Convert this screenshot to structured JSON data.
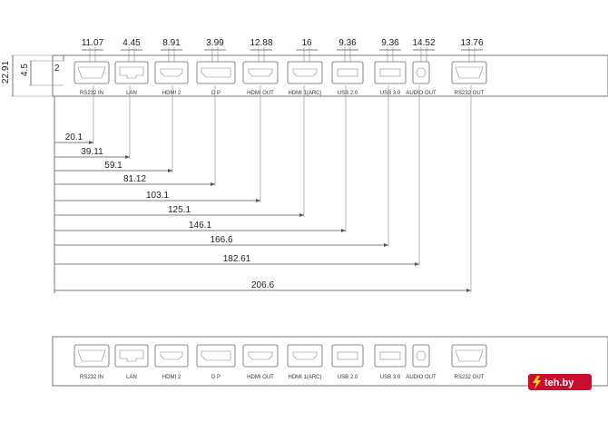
{
  "ports": [
    {
      "id": "rs232-in",
      "label": "RS232 IN",
      "width_label": "11.07",
      "offset_label": "20.1",
      "icon": "db9-port"
    },
    {
      "id": "lan",
      "label": "LAN",
      "width_label": "4.45",
      "offset_label": "39.11",
      "icon": "rj45-port"
    },
    {
      "id": "hdmi-2",
      "label": "HDMI 2",
      "width_label": "8.91",
      "offset_label": "59.1",
      "icon": "hdmi-port"
    },
    {
      "id": "dp",
      "label": "D P",
      "width_label": "3.99",
      "offset_label": "81.12",
      "icon": "displayport-port"
    },
    {
      "id": "hdmi-out",
      "label": "HDMI OUT",
      "width_label": "12.88",
      "offset_label": "103.1",
      "icon": "hdmi-port"
    },
    {
      "id": "hdmi-1-arc",
      "label": "HDMI 1(ARC)",
      "width_label": "16",
      "offset_label": "125.1",
      "icon": "hdmi-port"
    },
    {
      "id": "usb-2",
      "label": "USB 2.0",
      "width_label": "9.36",
      "offset_label": "146.1",
      "icon": "usb-port"
    },
    {
      "id": "usb-3",
      "label": "USB 3.0",
      "width_label": "9.36",
      "offset_label": "166.6",
      "icon": "usb-port"
    },
    {
      "id": "audio-out",
      "label": "AUDIO OUT",
      "width_label": "14.52",
      "offset_label": "182.61",
      "icon": "audio-jack"
    },
    {
      "id": "rs232-out",
      "label": "RS232 OUT",
      "width_label": "13.76",
      "offset_label": "206.6",
      "icon": "db9-port"
    }
  ],
  "side_dims": {
    "panel_height": "22.91",
    "port_height": "4.5",
    "port_top_gap": "2"
  },
  "watermark": {
    "text": "teh.by",
    "icon": "bolt-logo-icon",
    "color": "#c8102e"
  }
}
